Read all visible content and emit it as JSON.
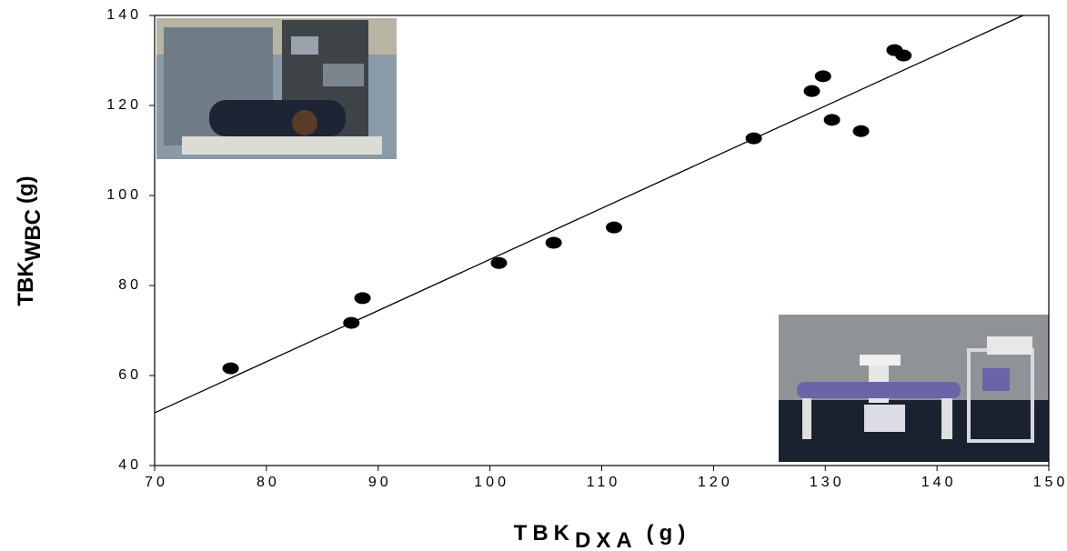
{
  "chart_data": {
    "type": "scatter",
    "x_label": {
      "main": "TBK",
      "subscript": "DXA",
      "unit": "(g)"
    },
    "y_label": {
      "main": "TBK",
      "subscript": "WBC",
      "unit": "(g)"
    },
    "series": [
      {
        "color": "#000000",
        "x": [
          76.8,
          87.6,
          88.6,
          100.8,
          105.7,
          111.1,
          123.6,
          128.8,
          129.8,
          130.6,
          133.2,
          136.2,
          137.0
        ],
        "values": [
          61.6,
          71.7,
          77.2,
          85.0,
          89.5,
          92.9,
          112.7,
          123.2,
          126.5,
          116.8,
          114.3,
          132.3,
          131.1
        ]
      }
    ],
    "trend_line": {
      "color": "#000000",
      "x": [
        70,
        147.7
      ],
      "values": [
        51.7,
        140
      ]
    },
    "xlim": [
      70,
      150
    ],
    "xticks": [
      70,
      80,
      90,
      100,
      110,
      120,
      130,
      140,
      150
    ],
    "ylim": [
      40,
      140
    ],
    "yticks": [
      40,
      60,
      80,
      100,
      120,
      140
    ],
    "grid": false
  }
}
